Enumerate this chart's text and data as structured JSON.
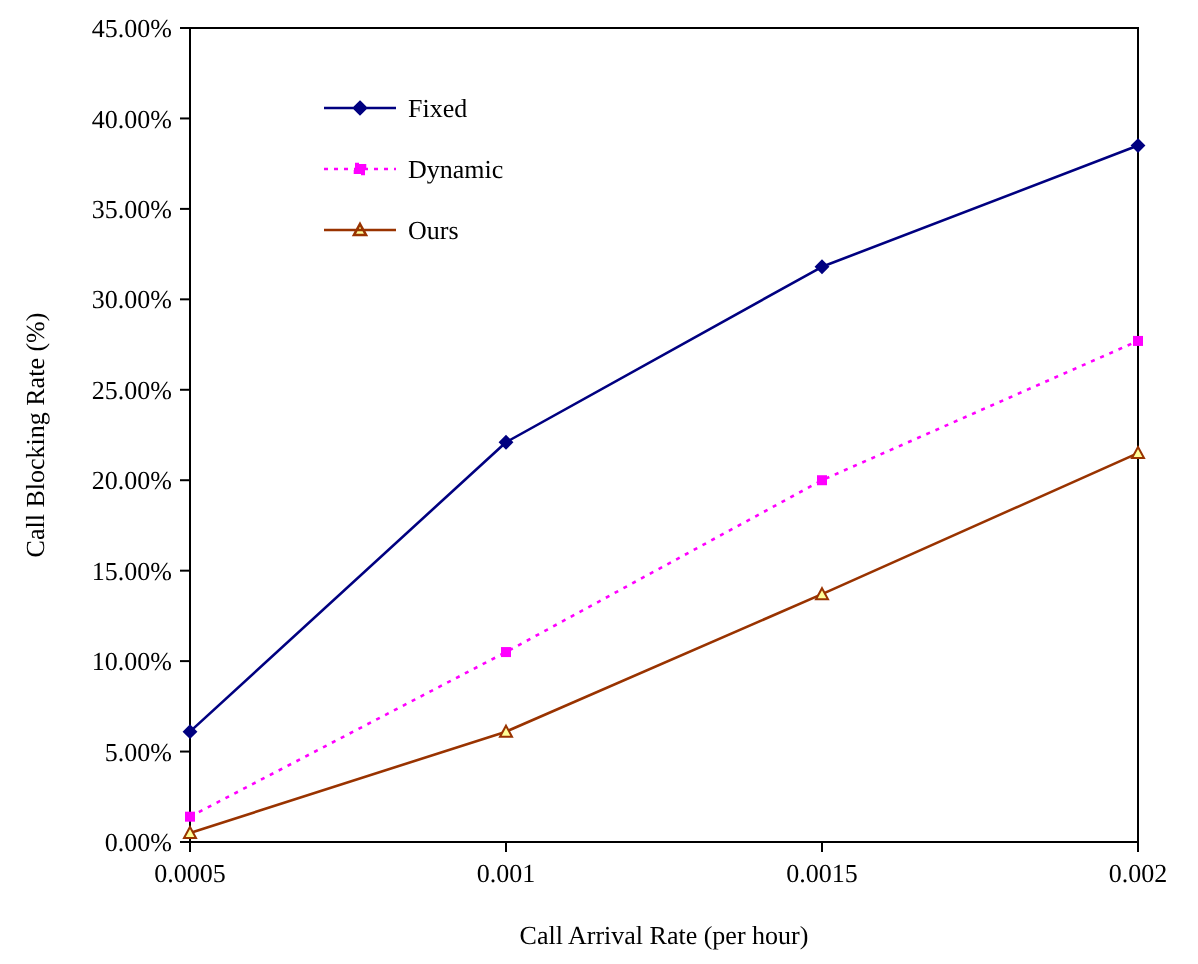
{
  "chart_data": {
    "type": "line",
    "xlabel": "Call Arrival Rate (per hour)",
    "ylabel": "Call Blocking Rate  (%)",
    "x": [
      0.0005,
      0.001,
      0.0015,
      0.002
    ],
    "series": [
      {
        "name": "Fixed",
        "color": "#000080",
        "values": [
          6.1,
          22.1,
          31.8,
          38.5
        ],
        "marker": "diamond",
        "line_style": "solid"
      },
      {
        "name": "Dynamic",
        "color": "#ff00ff",
        "values": [
          1.4,
          10.5,
          20.0,
          27.7
        ],
        "marker": "square",
        "line_style": "dotted"
      },
      {
        "name": "Ours",
        "color": "#993300",
        "values": [
          0.5,
          6.1,
          13.7,
          21.5
        ],
        "marker": "triangle",
        "line_style": "solid"
      }
    ],
    "xlim": [
      0.0005,
      0.002
    ],
    "xticks": [
      0.0005,
      0.001,
      0.0015,
      0.002
    ],
    "ylim": [
      0,
      45
    ],
    "yticks": [
      {
        "value": 0,
        "label": "0.00%"
      },
      {
        "value": 5,
        "label": "5.00%"
      },
      {
        "value": 10,
        "label": "10.00%"
      },
      {
        "value": 15,
        "label": "15.00%"
      },
      {
        "value": 20,
        "label": "20.00%"
      },
      {
        "value": 25,
        "label": "25.00%"
      },
      {
        "value": 30,
        "label": "30.00%"
      },
      {
        "value": 35,
        "label": "35.00%"
      },
      {
        "value": 40,
        "label": "40.00%"
      },
      {
        "value": 45,
        "label": "45.00%"
      }
    ],
    "grid": false,
    "legend": "top left"
  }
}
